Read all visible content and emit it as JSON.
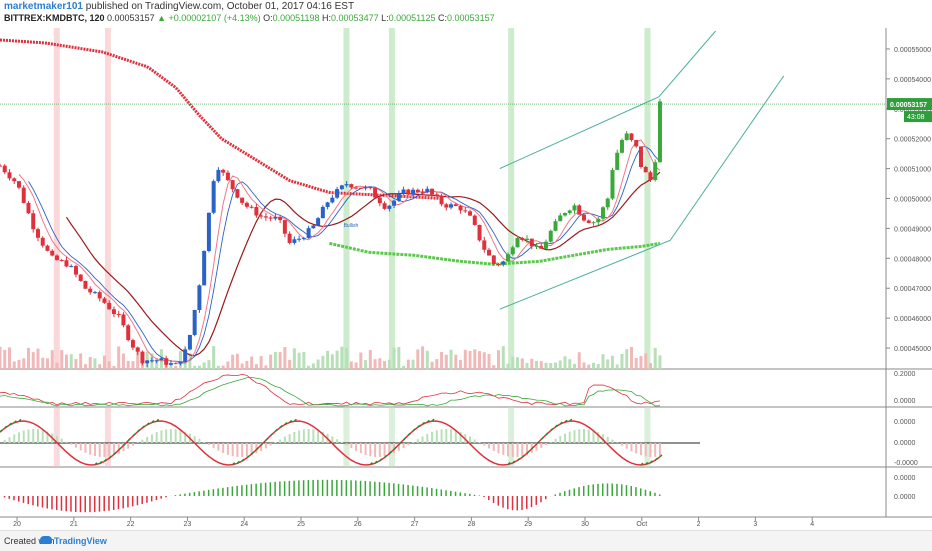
{
  "header": {
    "user": "marketmaker101",
    "published": "published on TradingView.com, October 01, 2017 04:16 EST",
    "symbol": "BITTREX:KMDBTC, 120",
    "last": "0.00053157",
    "change": "▲ +0.00002107 (+4.13%)",
    "o_label": "O:",
    "o_value": "0.00051198",
    "h_label": "H:",
    "h_value": "0.00053477",
    "l_label": "L:",
    "l_value": "0.00051125",
    "c_label": "C:",
    "c_value": "0.00053157"
  },
  "footer": {
    "created": "Created with",
    "brand": "TradingView"
  },
  "colors": {
    "up": "#3aa83a",
    "down": "#e0303c",
    "blue": "#2a62c8",
    "sma_red": "#e0303c",
    "sma_green": "#5ac84a",
    "channel": "#4aae9c",
    "price_tag": "#2d9e3a",
    "vol_up": "#b8e0b8",
    "vol_down": "#f0b8b8"
  },
  "chart_data": {
    "type": "candlestick",
    "price_axis": {
      "ticks": [
        "0.00055000",
        "0.00054000",
        "0.00053000",
        "0.00052000",
        "0.00051000",
        "0.00050000",
        "0.00049000",
        "0.00048000",
        "0.00047000",
        "0.00046000",
        "0.00045000"
      ],
      "ylim": [
        0.000443,
        0.000557
      ]
    },
    "last_price_tag": "0.00053157",
    "countdown_tag": "43:08",
    "x_axis": {
      "labels": [
        "20",
        "21",
        "22",
        "23",
        "24",
        "25",
        "26",
        "27",
        "28",
        "29",
        "30",
        "Oct",
        "2",
        "3",
        "4"
      ],
      "xlim": [
        19.7,
        35.3
      ]
    },
    "ohlc_anchor_closes": [
      [
        19.7,
        0.000511
      ],
      [
        20.0,
        0.000505
      ],
      [
        20.3,
        0.00049
      ],
      [
        20.6,
        0.00048
      ],
      [
        20.9,
        0.000478
      ],
      [
        21.2,
        0.00047
      ],
      [
        21.5,
        0.000466
      ],
      [
        21.8,
        0.00046
      ],
      [
        22.0,
        0.000452
      ],
      [
        22.2,
        0.000446
      ],
      [
        22.5,
        0.000446
      ],
      [
        22.8,
        0.000444
      ],
      [
        23.0,
        0.00045
      ],
      [
        23.2,
        0.00047
      ],
      [
        23.5,
        0.000512
      ],
      [
        23.7,
        0.000506
      ],
      [
        24.0,
        0.000498
      ],
      [
        24.3,
        0.000494
      ],
      [
        24.6,
        0.000493
      ],
      [
        24.8,
        0.000485
      ],
      [
        25.0,
        0.000487
      ],
      [
        25.2,
        0.00049
      ],
      [
        25.5,
        0.0005
      ],
      [
        25.8,
        0.000505
      ],
      [
        26.2,
        0.000503
      ],
      [
        26.5,
        0.000497
      ],
      [
        26.8,
        0.000502
      ],
      [
        27.2,
        0.000503
      ],
      [
        27.5,
        0.000498
      ],
      [
        27.8,
        0.000497
      ],
      [
        28.0,
        0.000493
      ],
      [
        28.2,
        0.000484
      ],
      [
        28.4,
        0.000478
      ],
      [
        28.6,
        0.000479
      ],
      [
        28.8,
        0.000488
      ],
      [
        29.0,
        0.000486
      ],
      [
        29.2,
        0.000482
      ],
      [
        29.4,
        0.000489
      ],
      [
        29.6,
        0.000495
      ],
      [
        29.8,
        0.000498
      ],
      [
        30.0,
        0.000493
      ],
      [
        30.2,
        0.000492
      ],
      [
        30.4,
        0.0005
      ],
      [
        30.5,
        0.000512
      ],
      [
        30.7,
        0.000522
      ],
      [
        30.9,
        0.000517
      ],
      [
        31.0,
        0.00051
      ],
      [
        31.2,
        0.000505
      ],
      [
        31.32,
        0.000532
      ]
    ],
    "sma_red_anchors": [
      [
        19.7,
        0.000553
      ],
      [
        20.5,
        0.000552
      ],
      [
        21.5,
        0.000549
      ],
      [
        22.3,
        0.000544
      ],
      [
        22.8,
        0.000537
      ],
      [
        23.2,
        0.000528
      ],
      [
        23.6,
        0.00052
      ],
      [
        24.2,
        0.000513
      ],
      [
        24.8,
        0.000506
      ],
      [
        25.5,
        0.000502
      ],
      [
        26.5,
        0.000501
      ],
      [
        27.5,
        0.0005
      ]
    ],
    "sma_green_anchors": [
      [
        25.5,
        0.000485
      ],
      [
        26.2,
        0.000482
      ],
      [
        27.0,
        0.000481
      ],
      [
        27.8,
        0.000479
      ],
      [
        28.4,
        0.000478
      ],
      [
        29.2,
        0.000479
      ],
      [
        29.8,
        0.000481
      ],
      [
        30.4,
        0.000483
      ],
      [
        31.0,
        0.000484
      ],
      [
        31.32,
        0.000485
      ]
    ],
    "channel_lines": [
      [
        [
          28.5,
          0.000463
        ],
        [
          31.5,
          0.000486
        ],
        [
          33.5,
          0.000541
        ]
      ],
      [
        [
          28.5,
          0.00051
        ],
        [
          31.3,
          0.000534
        ],
        [
          32.3,
          0.000556
        ]
      ]
    ],
    "highlight_bars_red": [
      20.7,
      21.6
    ],
    "highlight_bars_green": [
      25.8,
      26.6,
      28.7,
      31.1
    ],
    "panels": [
      {
        "name": "oscillator-1",
        "ticks": [
          "0.2000",
          "0.0000"
        ]
      },
      {
        "name": "oscillator-2",
        "ticks": [
          "0.0000",
          "0.0000",
          "-0.0000"
        ]
      },
      {
        "name": "histogram",
        "ticks": [
          "0.0000",
          "0.0000"
        ]
      }
    ],
    "annotation": "Bullish"
  }
}
